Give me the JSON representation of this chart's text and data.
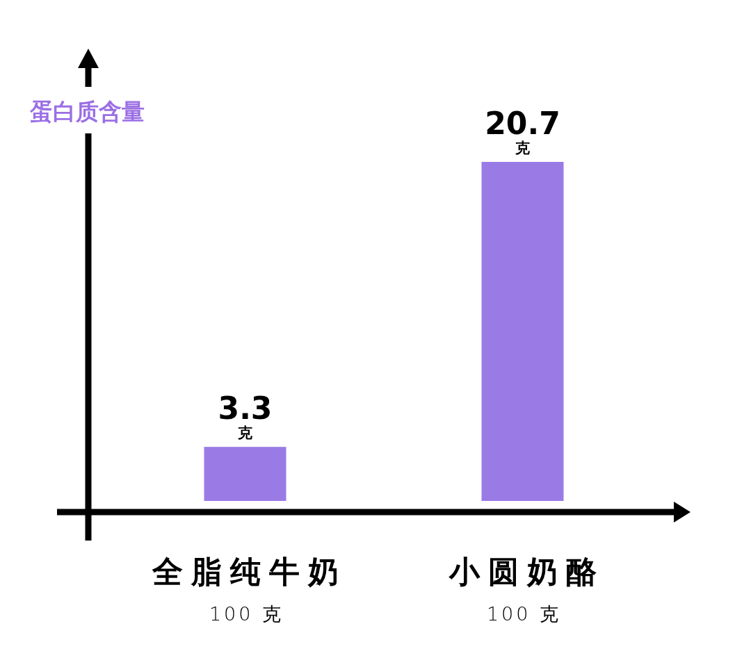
{
  "chart_data": {
    "type": "bar",
    "ylabel": "蛋白质含量",
    "categories": [
      "全脂纯牛奶\n100 克",
      "小圆奶酪\n100 克"
    ],
    "values": [
      3.3,
      20.7
    ],
    "color": "#9a7be6",
    "value_labels": [
      "3.3\n克",
      "20.7\n克"
    ]
  }
}
